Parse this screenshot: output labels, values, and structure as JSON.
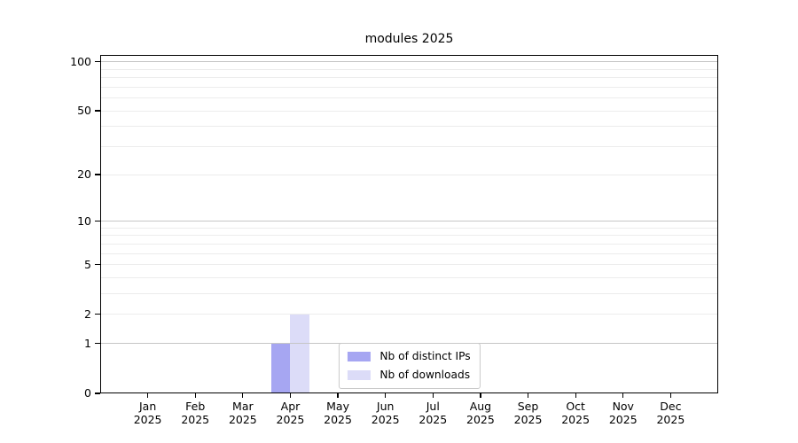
{
  "chart_data": {
    "type": "bar",
    "title": "modules 2025",
    "categories": [
      "Jan",
      "Feb",
      "Mar",
      "Apr",
      "May",
      "Jun",
      "Jul",
      "Aug",
      "Sep",
      "Oct",
      "Nov",
      "Dec"
    ],
    "x_tick_second_line": "2025",
    "series": [
      {
        "name": "Nb of distinct IPs",
        "color": "#a6a6f2",
        "values": [
          0,
          0,
          0,
          1,
          0,
          0,
          0,
          0,
          0,
          0,
          0,
          0
        ]
      },
      {
        "name": "Nb of downloads",
        "color": "#dcdcf8",
        "values": [
          0,
          0,
          0,
          2,
          0,
          0,
          0,
          0,
          0,
          0,
          0,
          0
        ]
      }
    ],
    "y_axis": {
      "scale": "log1p",
      "tick_values": [
        0,
        1,
        2,
        5,
        10,
        20,
        50,
        100
      ],
      "tick_labels": [
        "0",
        "1",
        "2",
        "5",
        "10",
        "20",
        "50",
        "100"
      ],
      "major_gridlines": [
        1,
        10,
        100
      ],
      "minor_gridlines": [
        2,
        3,
        4,
        5,
        6,
        7,
        8,
        9,
        20,
        30,
        40,
        50,
        60,
        70,
        80,
        90
      ],
      "ylim": [
        0,
        110
      ]
    },
    "xlabel": "",
    "ylabel": "",
    "grid": true,
    "legend_position": "lower center"
  },
  "colors": {
    "background": "#ffffff",
    "axis": "#000000",
    "major_gridline": "#c6c6c6",
    "minor_gridline": "#ececec",
    "legend_border": "#c9c9c9"
  }
}
